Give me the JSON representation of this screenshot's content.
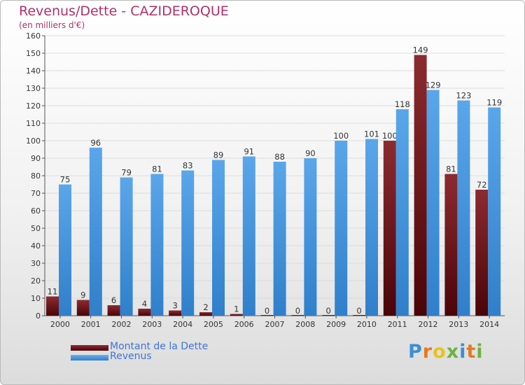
{
  "header": {
    "title": "Revenus/Dette - CAZIDEROQUE",
    "subtitle": "(en milliers d'€)"
  },
  "colors": {
    "debt": "#6b0f12",
    "revenue": "#3d8ed8",
    "grid": "#dcdcdc",
    "title": "#b0306a",
    "legend_text": "#3e74d8"
  },
  "legend": {
    "debt": "Montant de la Dette",
    "revenue": "Revenus"
  },
  "logo": {
    "text": "Proxiti",
    "letters": [
      "P",
      "r",
      "o",
      "x",
      "i",
      "t",
      "i"
    ],
    "letter_colors": [
      "#3a8fd6",
      "#e8791e",
      "#e8c21e",
      "#6cb33f",
      "#3a8fd6",
      "#e8791e",
      "#6cb33f"
    ]
  },
  "chart_data": {
    "type": "bar",
    "title": "Revenus/Dette - CAZIDEROQUE",
    "ylabel": "(en milliers d'€)",
    "xlabel": "",
    "ylim": [
      0,
      160
    ],
    "ytick_step": 10,
    "grid": true,
    "legend_position": "bottom-left",
    "categories": [
      "2000",
      "2001",
      "2002",
      "2003",
      "2004",
      "2005",
      "2006",
      "2007",
      "2008",
      "2009",
      "2010",
      "2011",
      "2012",
      "2013",
      "2014"
    ],
    "series": [
      {
        "name": "Montant de la Dette",
        "values": [
          11,
          9,
          6,
          4,
          3,
          2,
          1,
          0,
          0,
          0,
          0,
          100,
          149,
          81,
          72
        ]
      },
      {
        "name": "Revenus",
        "values": [
          75,
          96,
          79,
          81,
          83,
          89,
          91,
          88,
          90,
          100,
          101,
          118,
          129,
          123,
          119
        ]
      }
    ]
  }
}
